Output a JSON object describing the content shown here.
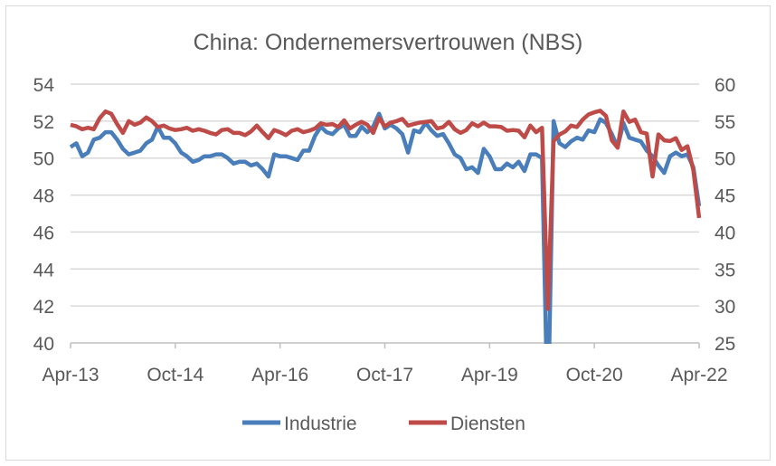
{
  "chart_data": {
    "type": "line",
    "title": "China: Ondernemersvertrouwen (NBS)",
    "start_month": "2013-04",
    "x_tick_labels": [
      "Apr-13",
      "Oct-14",
      "Apr-16",
      "Oct-17",
      "Apr-19",
      "Oct-20",
      "Apr-22"
    ],
    "x_tick_step_months": 18,
    "y_left": {
      "lim": [
        40,
        54
      ],
      "ticks": [
        "40",
        "42",
        "44",
        "46",
        "48",
        "50",
        "52",
        "54"
      ],
      "step": 2
    },
    "y_right": {
      "lim": [
        25,
        60
      ],
      "ticks": [
        "25",
        "30",
        "35",
        "40",
        "45",
        "50",
        "55",
        "60"
      ],
      "step": 5
    },
    "grid": true,
    "legend_position": "bottom",
    "series": [
      {
        "name": "Industrie",
        "axis": "left",
        "color": "#4a7ebb",
        "values": [
          50.6,
          50.8,
          50.1,
          50.3,
          51.0,
          51.1,
          51.4,
          51.4,
          51.0,
          50.5,
          50.2,
          50.3,
          50.4,
          50.8,
          51.0,
          51.7,
          51.1,
          51.1,
          50.8,
          50.3,
          50.1,
          49.8,
          49.9,
          50.1,
          50.1,
          50.2,
          50.2,
          50.0,
          49.7,
          49.8,
          49.8,
          49.6,
          49.7,
          49.4,
          49.0,
          50.2,
          50.1,
          50.1,
          50.0,
          49.9,
          50.4,
          50.4,
          51.2,
          51.7,
          51.4,
          51.3,
          51.6,
          51.8,
          51.2,
          51.2,
          51.7,
          51.4,
          51.7,
          52.4,
          51.6,
          51.8,
          51.6,
          51.3,
          50.3,
          51.5,
          51.4,
          51.9,
          51.5,
          51.2,
          51.3,
          50.8,
          50.2,
          50.0,
          49.4,
          49.5,
          49.2,
          50.5,
          50.1,
          49.4,
          49.4,
          49.7,
          49.5,
          49.8,
          49.3,
          50.2,
          50.2,
          50.0,
          35.7,
          52.0,
          50.8,
          50.6,
          50.9,
          51.1,
          51.0,
          51.5,
          51.4,
          52.1,
          51.9,
          51.3,
          50.6,
          51.9,
          51.1,
          51.0,
          50.9,
          50.4,
          50.1,
          49.6,
          49.2,
          50.1,
          50.3,
          50.1,
          50.2,
          49.5,
          47.4
        ]
      },
      {
        "name": "Diensten",
        "axis": "right",
        "color": "#be4b48",
        "values": [
          54.5,
          54.3,
          53.9,
          54.1,
          53.9,
          55.4,
          56.3,
          56.0,
          54.6,
          53.4,
          55.0,
          54.5,
          54.8,
          55.5,
          55.0,
          54.2,
          54.4,
          54.0,
          53.8,
          53.9,
          54.1,
          53.7,
          53.9,
          53.7,
          53.4,
          53.2,
          53.8,
          53.9,
          53.4,
          53.4,
          53.1,
          53.6,
          54.4,
          53.5,
          52.7,
          53.8,
          53.5,
          53.1,
          53.7,
          53.9,
          53.5,
          53.7,
          54.0,
          54.7,
          54.5,
          54.6,
          54.2,
          55.1,
          54.0,
          54.5,
          54.9,
          54.5,
          53.4,
          55.4,
          54.3,
          54.8,
          55.0,
          55.3,
          54.4,
          54.6,
          54.8,
          54.9,
          55.0,
          54.0,
          54.2,
          54.9,
          53.9,
          53.4,
          53.8,
          54.7,
          54.3,
          54.8,
          54.3,
          54.3,
          54.2,
          53.7,
          53.8,
          53.7,
          52.8,
          54.4,
          53.5,
          54.1,
          29.6,
          52.3,
          53.2,
          53.6,
          54.4,
          54.2,
          55.2,
          55.9,
          56.2,
          56.4,
          55.7,
          52.4,
          51.4,
          56.3,
          54.9,
          55.2,
          53.5,
          53.3,
          47.5,
          53.2,
          52.4,
          52.3,
          52.7,
          51.1,
          51.6,
          48.4,
          41.9
        ]
      }
    ]
  }
}
